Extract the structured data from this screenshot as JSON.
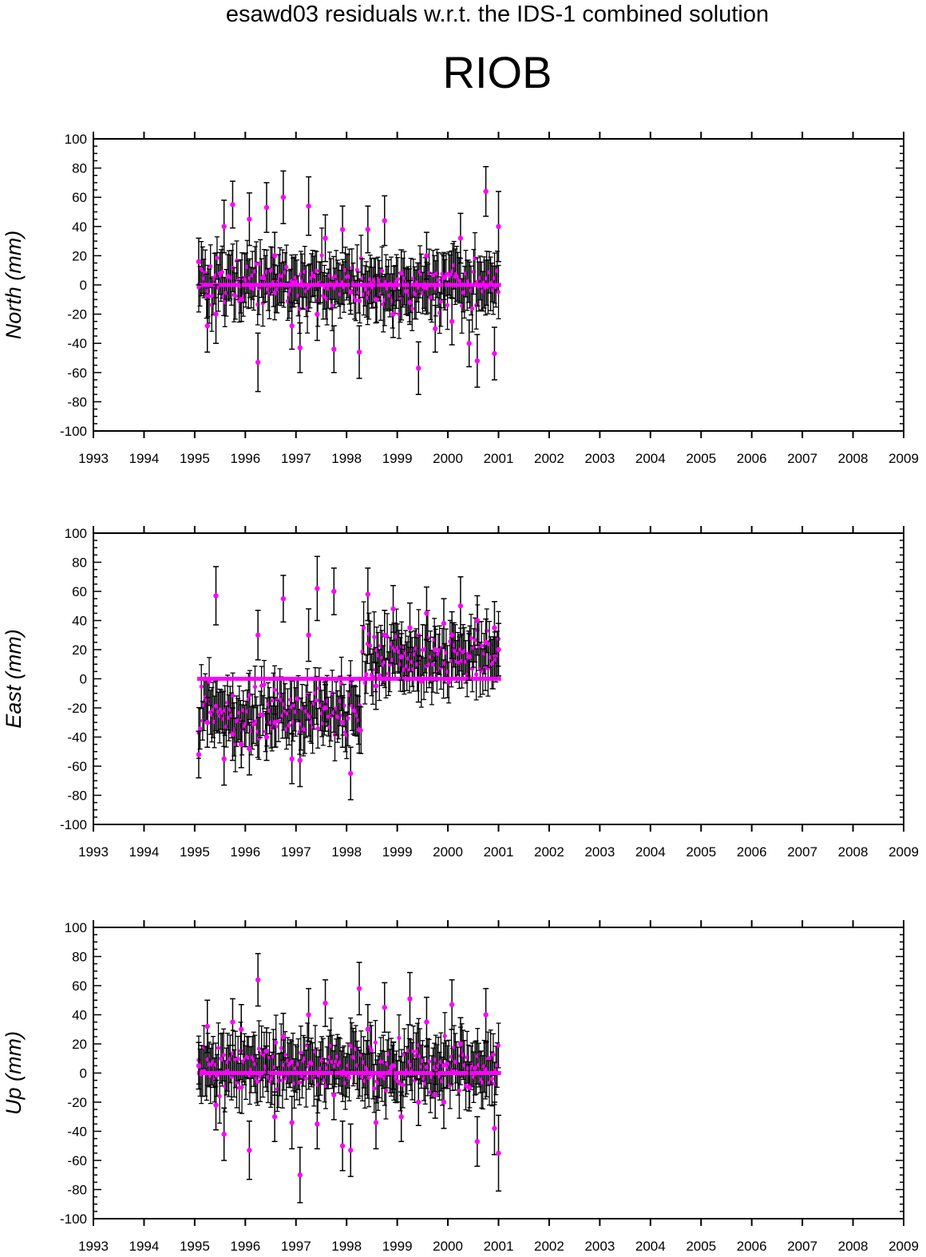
{
  "figure": {
    "title": "esawd03 residuals w.r.t. the IDS-1 combined solution",
    "station": "RIOB"
  },
  "colors": {
    "marker": "#ff00ff",
    "error_bar": "#000000",
    "frame": "#000000",
    "background": "#ffffff"
  },
  "chart_data": [
    {
      "type": "scatter",
      "component": "north",
      "ylabel": "North (mm)",
      "xlim": [
        1993,
        2009
      ],
      "ylim": [
        -100,
        100
      ],
      "x_ticks": [
        "1993",
        "1994",
        "1995",
        "1996",
        "1997",
        "1998",
        "1999",
        "2000",
        "2001",
        "2002",
        "2003",
        "2004",
        "2005",
        "2006",
        "2007",
        "2008",
        "2009"
      ],
      "y_ticks": [
        "100",
        "80",
        "60",
        "40",
        "20",
        "0",
        "-20",
        "-40",
        "-60",
        "-80",
        "-100"
      ],
      "grid": false,
      "zero_line": {
        "from": 1995.05,
        "to": 2001.05,
        "value": 0
      },
      "error_bar_halfwidth_mm": 16,
      "series": [
        {
          "x": [
            1995.08,
            1995.25,
            1995.42,
            1995.58,
            1995.75,
            1995.92,
            1996.08,
            1996.25,
            1996.42,
            1996.58,
            1996.75,
            1996.92,
            1997.08,
            1997.25,
            1997.42,
            1997.58,
            1997.75,
            1997.92,
            1998.08,
            1998.25,
            1998.42,
            1998.58,
            1998.75,
            1998.92,
            1999.08,
            1999.25,
            1999.42,
            1999.58,
            1999.75,
            1999.92,
            2000.08,
            2000.25,
            2000.42,
            2000.58,
            2000.75,
            2000.92,
            2001.0
          ],
          "y": [
            16,
            -28,
            -20,
            40,
            55,
            -10,
            45,
            -53,
            53,
            20,
            60,
            -28,
            -43,
            54,
            -20,
            32,
            -44,
            38,
            -5,
            -46,
            38,
            -10,
            44,
            -20,
            8,
            -12,
            -57,
            20,
            -30,
            5,
            -25,
            32,
            -40,
            -52,
            64,
            -47,
            40
          ],
          "err": [
            16,
            18,
            20,
            18,
            16,
            15,
            18,
            20,
            17,
            16,
            18,
            16,
            17,
            20,
            18,
            16,
            16,
            16,
            15,
            18,
            16,
            16,
            17,
            16,
            16,
            15,
            18,
            16,
            16,
            15,
            16,
            17,
            16,
            18,
            17,
            18,
            24
          ]
        }
      ]
    },
    {
      "type": "scatter",
      "component": "east",
      "ylabel": "East (mm)",
      "xlim": [
        1993,
        2009
      ],
      "ylim": [
        -100,
        100
      ],
      "x_ticks": [
        "1993",
        "1994",
        "1995",
        "1996",
        "1997",
        "1998",
        "1999",
        "2000",
        "2001",
        "2002",
        "2003",
        "2004",
        "2005",
        "2006",
        "2007",
        "2008",
        "2009"
      ],
      "y_ticks": [
        "100",
        "80",
        "60",
        "40",
        "20",
        "0",
        "-20",
        "-40",
        "-60",
        "-80",
        "-100"
      ],
      "grid": false,
      "zero_line": {
        "from": 1995.05,
        "to": 2001.05,
        "value": 0
      },
      "error_bar_halfwidth_mm": 16,
      "series": [
        {
          "x": [
            1995.08,
            1995.25,
            1995.42,
            1995.58,
            1995.75,
            1995.92,
            1996.08,
            1996.25,
            1996.42,
            1996.58,
            1996.75,
            1996.92,
            1997.08,
            1997.25,
            1997.42,
            1997.58,
            1997.75,
            1997.92,
            1998.08,
            1998.25,
            1998.42,
            1998.58,
            1998.75,
            1998.92,
            1999.08,
            1999.25,
            1999.42,
            1999.58,
            1999.75,
            1999.92,
            2000.08,
            2000.25,
            2000.42,
            2000.58,
            2000.75,
            2000.92,
            2001.0
          ],
          "y": [
            -52,
            -30,
            57,
            -55,
            -38,
            -45,
            -48,
            30,
            -40,
            -30,
            55,
            -55,
            -56,
            30,
            62,
            -20,
            60,
            -30,
            -65,
            -35,
            58,
            -5,
            30,
            48,
            15,
            35,
            0,
            45,
            20,
            38,
            30,
            50,
            15,
            40,
            25,
            35,
            20
          ],
          "err": [
            16,
            17,
            20,
            18,
            18,
            16,
            18,
            17,
            16,
            17,
            16,
            17,
            18,
            18,
            22,
            16,
            16,
            17,
            18,
            16,
            18,
            16,
            17,
            16,
            16,
            17,
            16,
            18,
            16,
            17,
            16,
            20,
            16,
            17,
            16,
            18,
            18
          ]
        }
      ]
    },
    {
      "type": "scatter",
      "component": "up",
      "ylabel": "Up (mm)",
      "xlim": [
        1993,
        2009
      ],
      "ylim": [
        -100,
        100
      ],
      "x_ticks": [
        "1993",
        "1994",
        "1995",
        "1996",
        "1997",
        "1998",
        "1999",
        "2000",
        "2001",
        "2002",
        "2003",
        "2004",
        "2005",
        "2006",
        "2007",
        "2008",
        "2009"
      ],
      "y_ticks": [
        "100",
        "80",
        "60",
        "40",
        "20",
        "0",
        "-20",
        "-40",
        "-60",
        "-80",
        "-100"
      ],
      "grid": false,
      "zero_line": {
        "from": 1995.05,
        "to": 2001.05,
        "value": 0
      },
      "error_bar_halfwidth_mm": 17,
      "series": [
        {
          "x": [
            1995.08,
            1995.25,
            1995.42,
            1995.58,
            1995.75,
            1995.92,
            1996.08,
            1996.25,
            1996.42,
            1996.58,
            1996.75,
            1996.92,
            1997.08,
            1997.25,
            1997.42,
            1997.58,
            1997.75,
            1997.92,
            1998.08,
            1998.25,
            1998.42,
            1998.58,
            1998.75,
            1998.92,
            1999.08,
            1999.25,
            1999.42,
            1999.58,
            1999.75,
            1999.92,
            2000.08,
            2000.25,
            2000.42,
            2000.58,
            2000.75,
            2000.92,
            2001.0
          ],
          "y": [
            5,
            32,
            -22,
            -42,
            35,
            30,
            -53,
            64,
            15,
            -30,
            25,
            -34,
            -70,
            40,
            -35,
            48,
            -15,
            -50,
            -53,
            58,
            30,
            -34,
            45,
            5,
            -30,
            51,
            -20,
            35,
            -15,
            -20,
            47,
            20,
            -10,
            -47,
            40,
            -38,
            -55
          ],
          "err": [
            16,
            18,
            17,
            18,
            16,
            17,
            20,
            18,
            16,
            17,
            16,
            18,
            19,
            18,
            17,
            16,
            17,
            17,
            18,
            18,
            17,
            18,
            17,
            16,
            17,
            18,
            16,
            17,
            16,
            18,
            17,
            18,
            16,
            17,
            18,
            18,
            26
          ]
        }
      ]
    }
  ]
}
